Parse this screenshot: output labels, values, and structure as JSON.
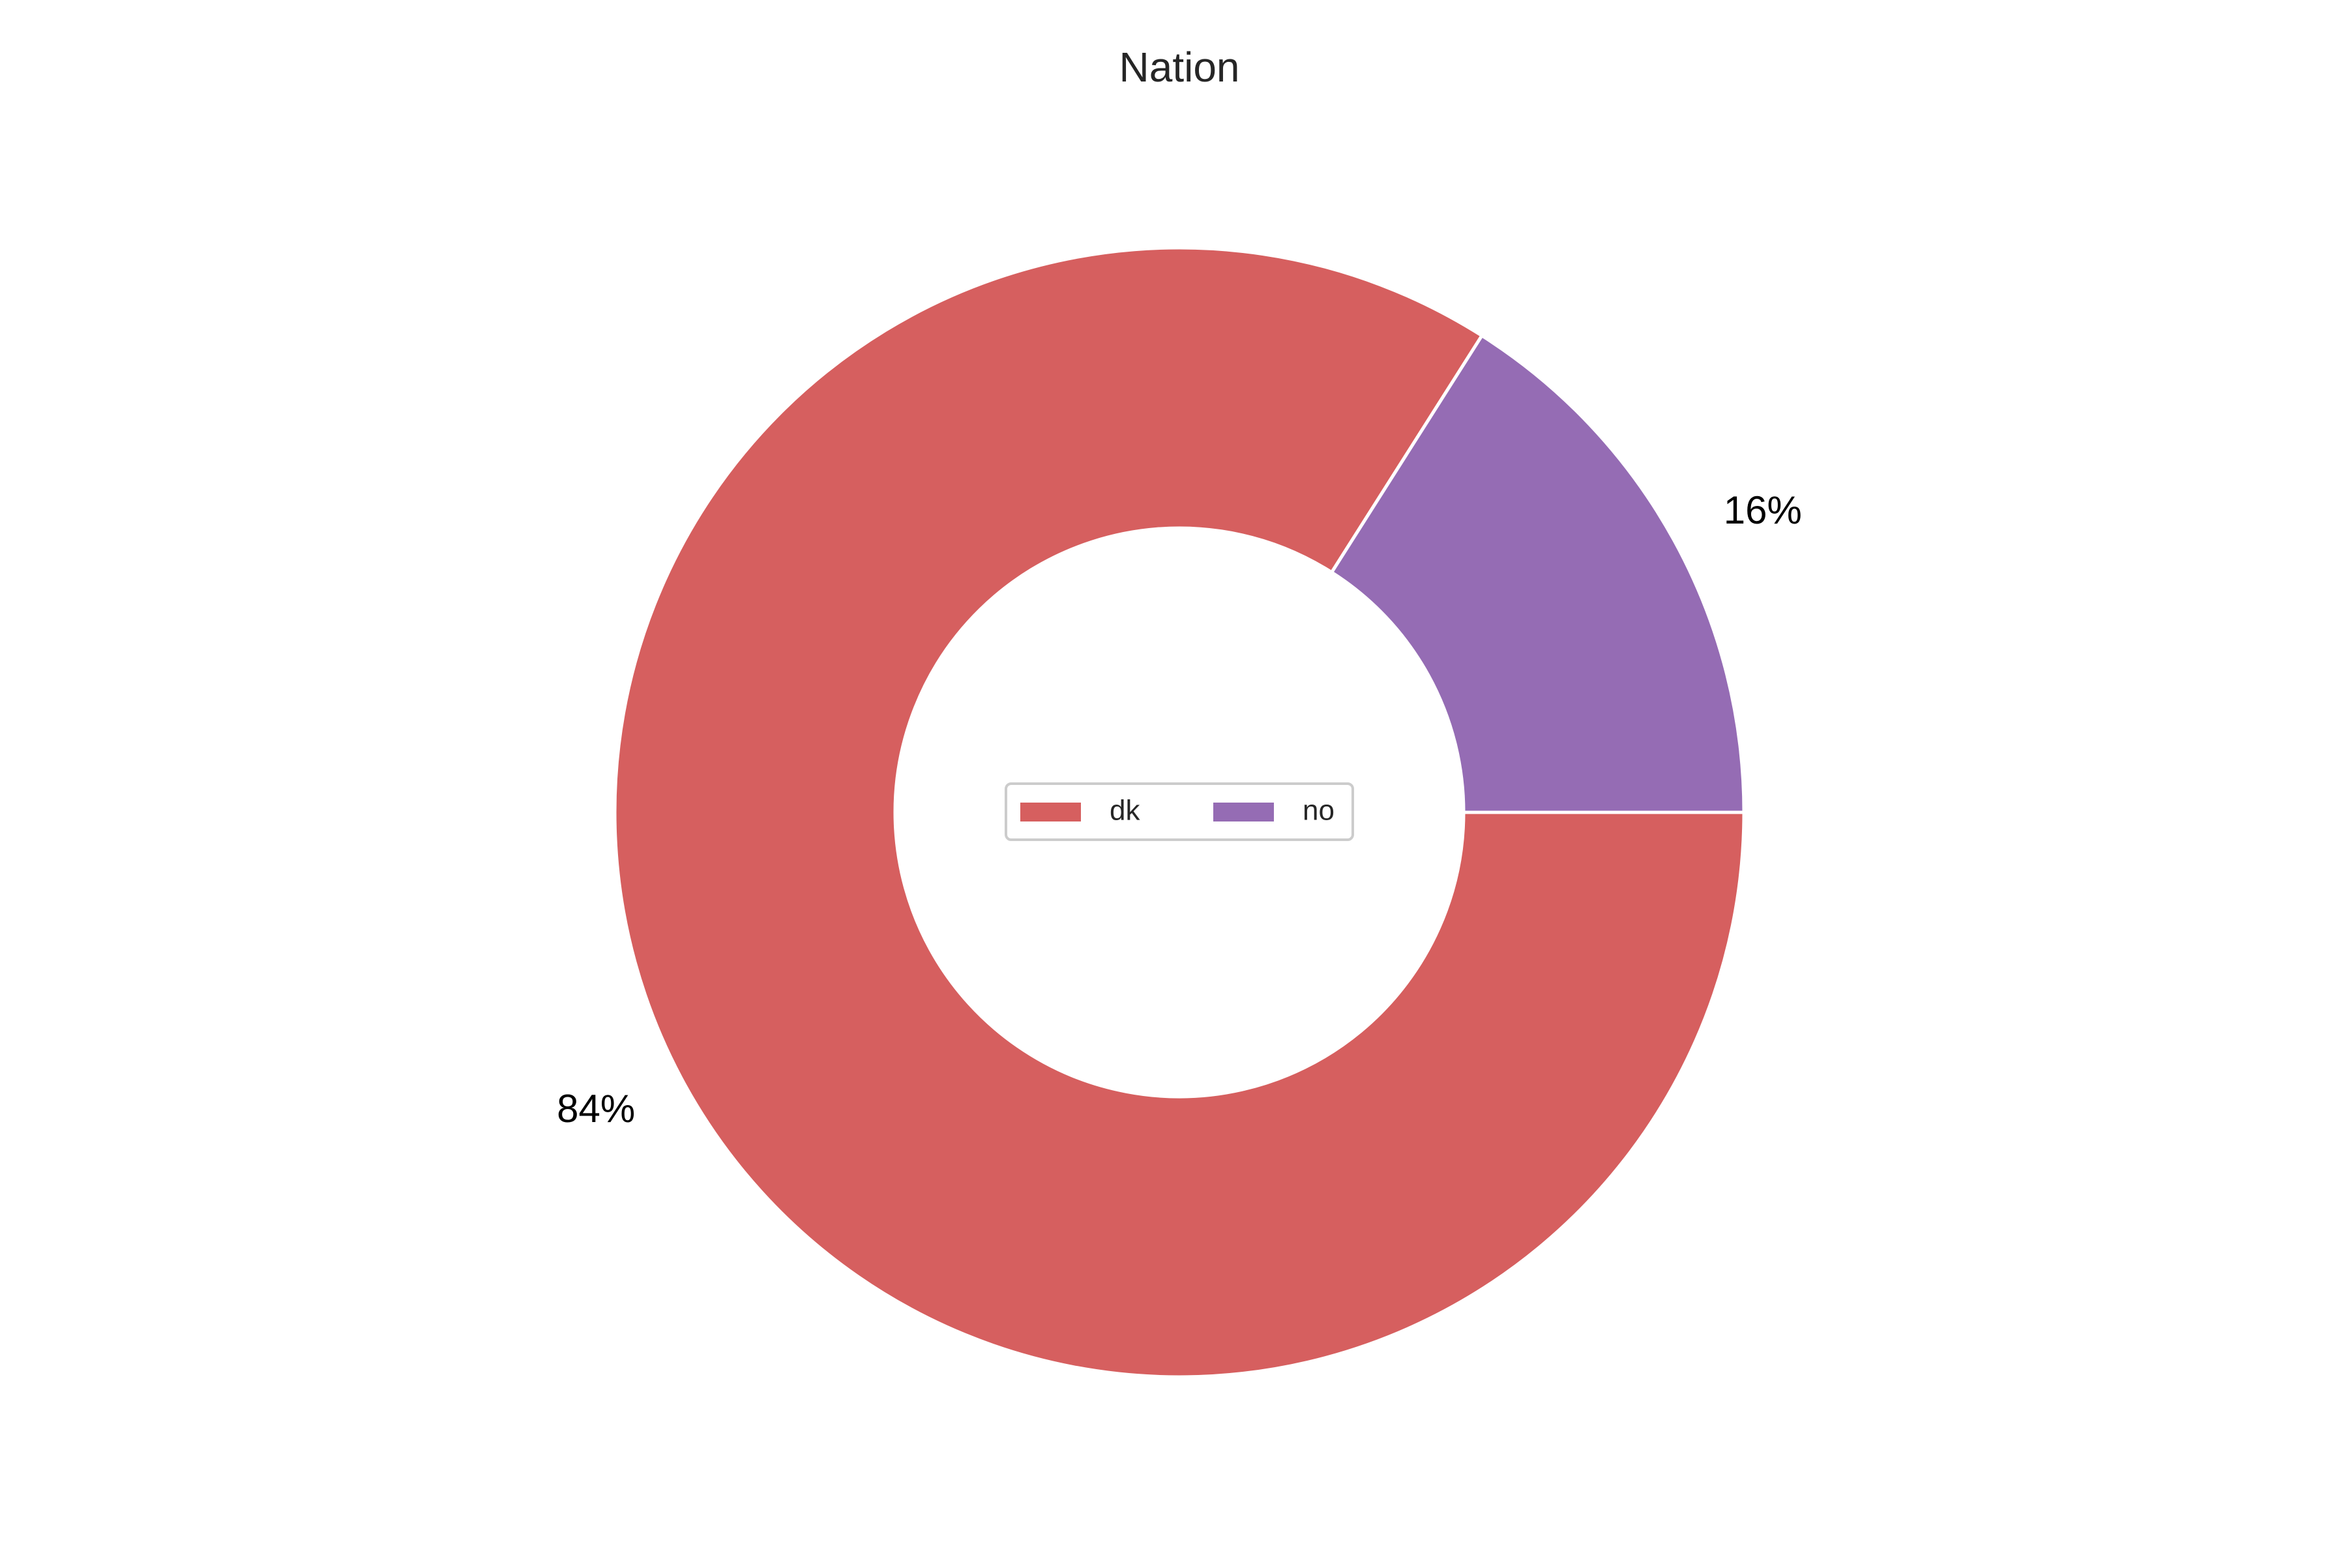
{
  "chart_data": {
    "type": "pie",
    "title": "Nation",
    "donut": true,
    "categories": [
      "dk",
      "no"
    ],
    "values": [
      84,
      16
    ],
    "value_labels": [
      "84%",
      "16%"
    ],
    "colors": [
      "#d65f5f",
      "#956cb4"
    ],
    "legend": {
      "position": "center",
      "columns": 2,
      "entries": [
        "dk",
        "no"
      ]
    },
    "start_angle": "3 o'clock",
    "direction": "clockwise"
  }
}
